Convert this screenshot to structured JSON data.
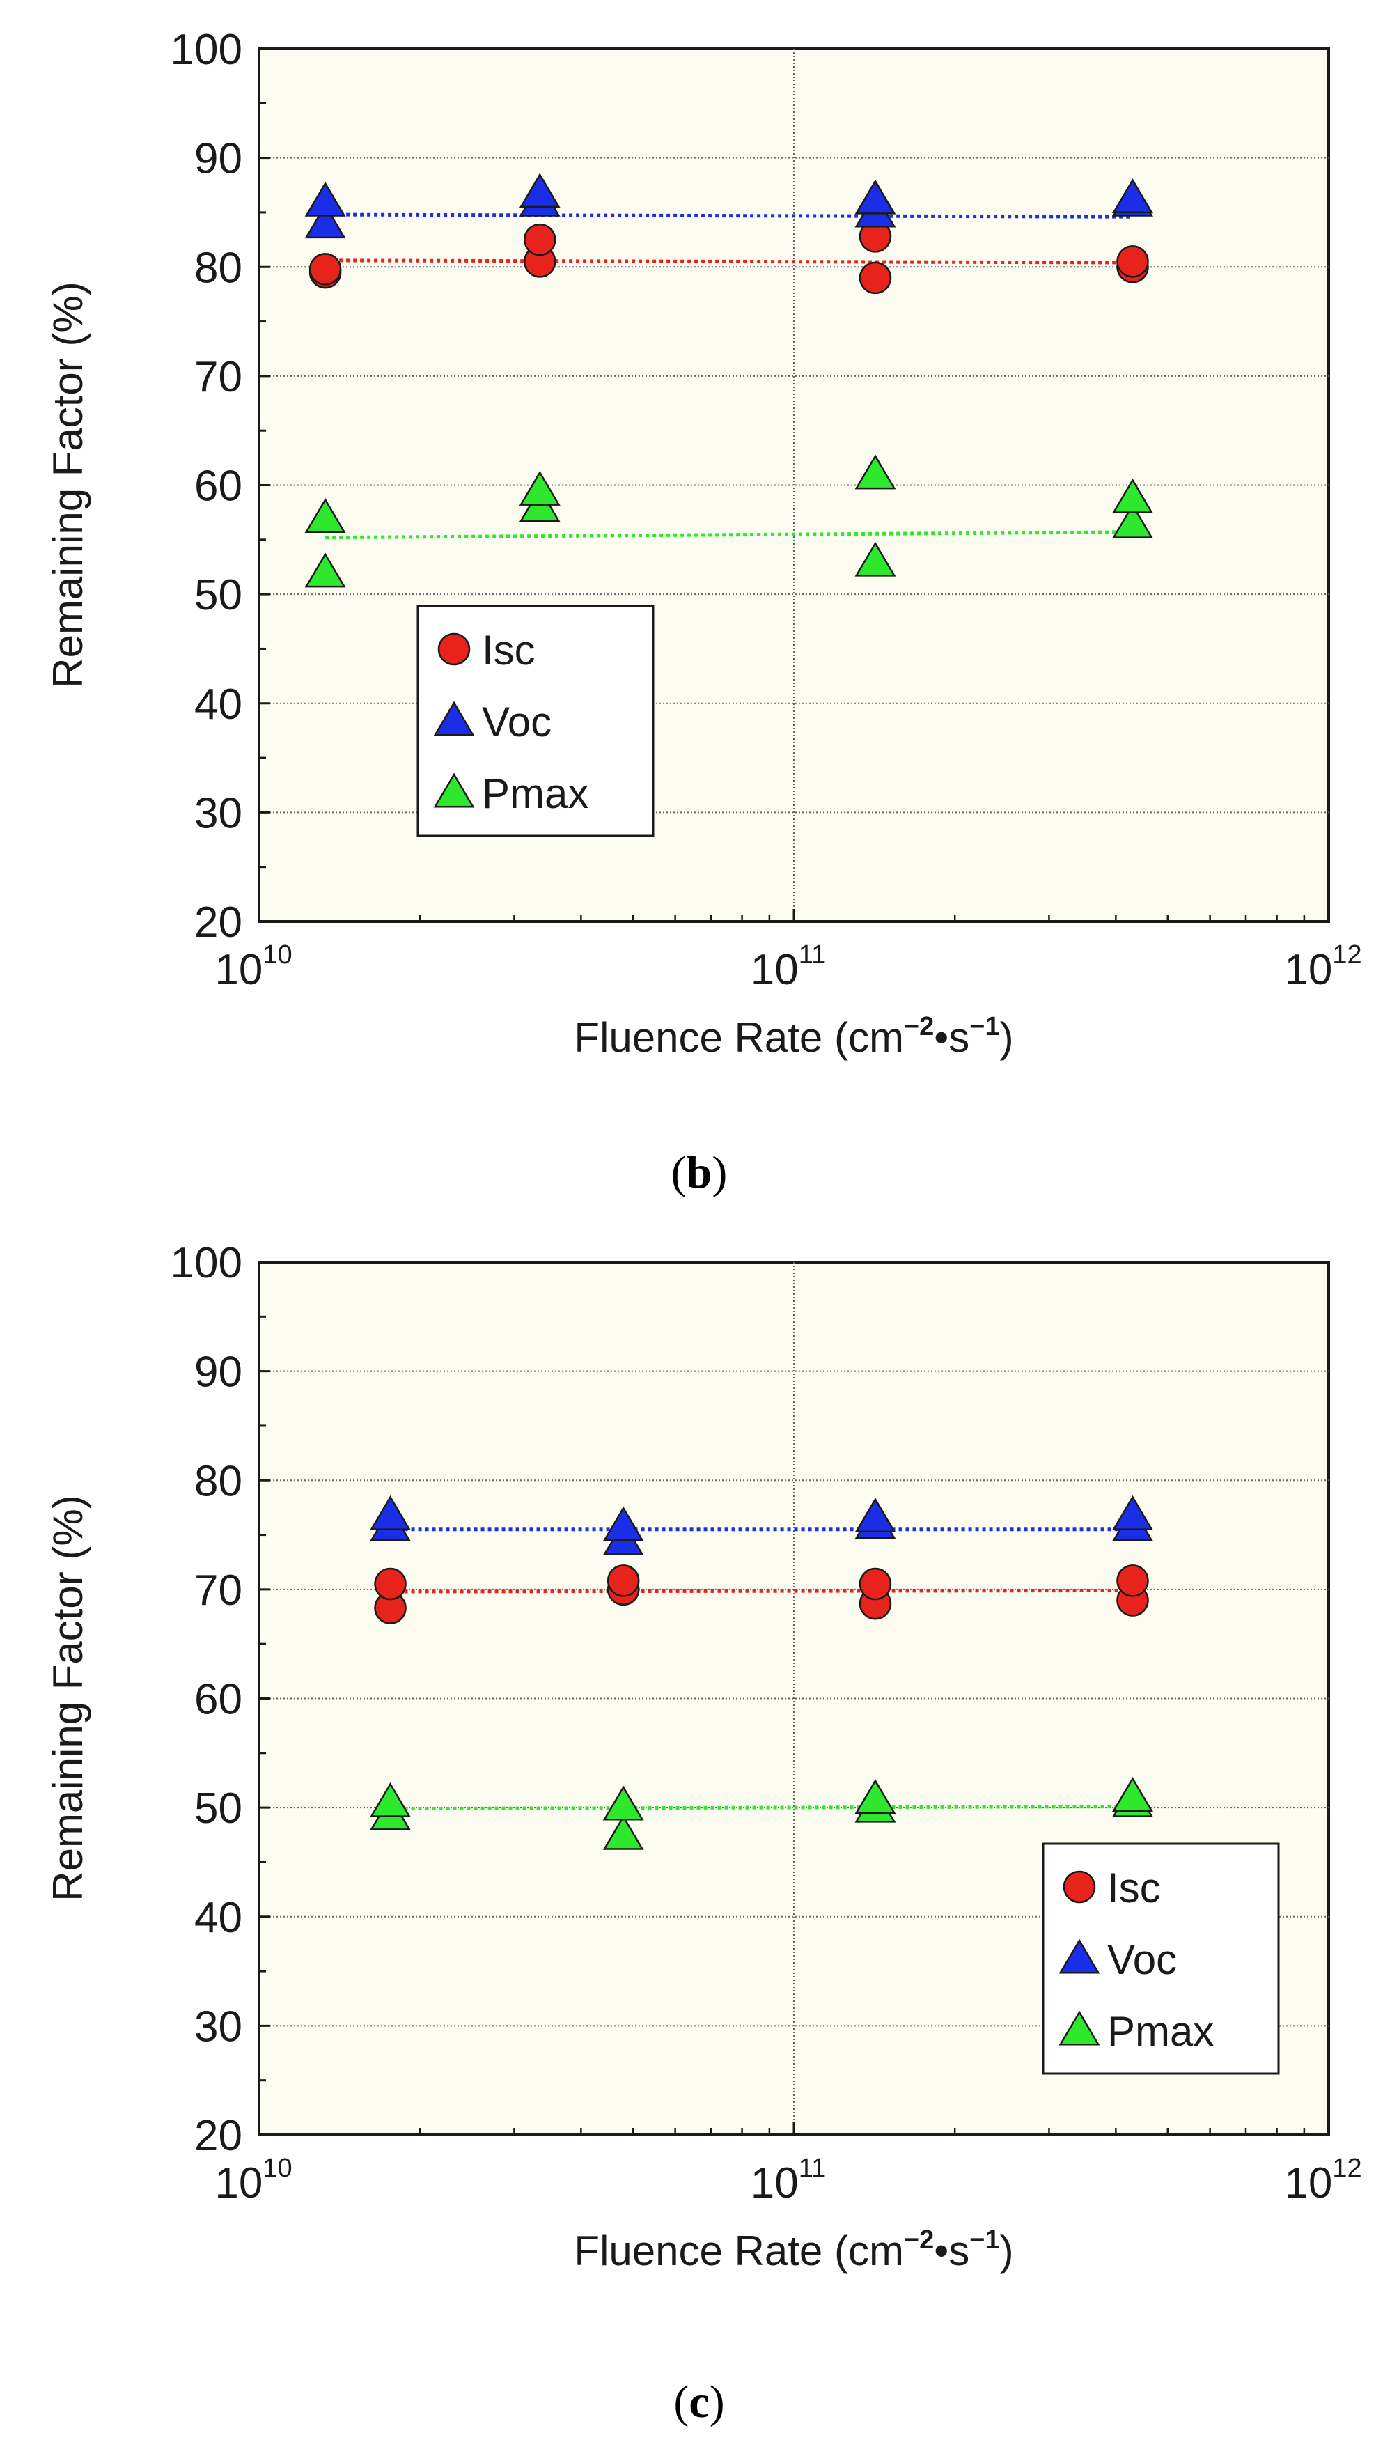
{
  "chart_data": [
    {
      "type": "scatter",
      "caption_letter": "b",
      "xlabel": "Fluence Rate (cm",
      "xlabel_exp1": "−2",
      "xlabel_mid": "•s",
      "xlabel_exp2": "−1",
      "xlabel_end": ")",
      "ylabel": "Remaining Factor (%)",
      "xscale": "log",
      "xlim": [
        10000000000,
        1000000000000
      ],
      "ylim": [
        20,
        100
      ],
      "yticks": [
        "20",
        "30",
        "40",
        "50",
        "60",
        "70",
        "80",
        "90",
        "100"
      ],
      "xticks": [
        {
          "base": "10",
          "exp": "10"
        },
        {
          "base": "10",
          "exp": "11"
        },
        {
          "base": "10",
          "exp": "12"
        }
      ],
      "legend_position": "center-left",
      "legend": [
        "Isc",
        "Voc",
        "Pmax"
      ],
      "series": [
        {
          "name": "Isc",
          "marker": "circle",
          "color": "#e8231c",
          "points": [
            [
              13300000000,
              79.5
            ],
            [
              13300000000,
              79.8
            ],
            [
              33500000000,
              80.5
            ],
            [
              33500000000,
              82.5
            ],
            [
              142000000000,
              79.0
            ],
            [
              142000000000,
              82.8
            ],
            [
              430000000000,
              80.0
            ],
            [
              430000000000,
              80.5
            ]
          ],
          "trend": [
            [
              13300000000,
              80.6
            ],
            [
              430000000000,
              80.4
            ]
          ]
        },
        {
          "name": "Voc",
          "marker": "triangle",
          "color": "#1a2ee8",
          "points": [
            [
              13300000000,
              84.0
            ],
            [
              13300000000,
              86.0
            ],
            [
              33500000000,
              86.0
            ],
            [
              33500000000,
              86.8
            ],
            [
              142000000000,
              85.0
            ],
            [
              142000000000,
              86.2
            ],
            [
              430000000000,
              86.0
            ],
            [
              430000000000,
              86.3
            ]
          ],
          "trend": [
            [
              13300000000,
              84.8
            ],
            [
              430000000000,
              84.6
            ]
          ]
        },
        {
          "name": "Pmax",
          "marker": "triangle",
          "color": "#2ee82e",
          "points": [
            [
              13300000000,
              52.0
            ],
            [
              13300000000,
              57.0
            ],
            [
              33500000000,
              58.0
            ],
            [
              33500000000,
              59.5
            ],
            [
              142000000000,
              53.0
            ],
            [
              142000000000,
              61.0
            ],
            [
              430000000000,
              56.5
            ],
            [
              430000000000,
              58.8
            ]
          ],
          "trend": [
            [
              13300000000,
              55.2
            ],
            [
              430000000000,
              55.7
            ]
          ]
        }
      ]
    },
    {
      "type": "scatter",
      "caption_letter": "c",
      "xlabel": "Fluence Rate (cm",
      "xlabel_exp1": "−2",
      "xlabel_mid": "•s",
      "xlabel_exp2": "−1",
      "xlabel_end": ")",
      "ylabel": "Remaining Factor (%)",
      "xscale": "log",
      "xlim": [
        10000000000,
        1000000000000
      ],
      "ylim": [
        20,
        100
      ],
      "yticks": [
        "20",
        "30",
        "40",
        "50",
        "60",
        "70",
        "80",
        "90",
        "100"
      ],
      "xticks": [
        {
          "base": "10",
          "exp": "10"
        },
        {
          "base": "10",
          "exp": "11"
        },
        {
          "base": "10",
          "exp": "12"
        }
      ],
      "legend_position": "bottom-right",
      "legend": [
        "Isc",
        "Voc",
        "Pmax"
      ],
      "series": [
        {
          "name": "Isc",
          "marker": "circle",
          "color": "#e8231c",
          "points": [
            [
              17600000000,
              68.3
            ],
            [
              17600000000,
              70.5
            ],
            [
              48000000000,
              70.0
            ],
            [
              48000000000,
              70.8
            ],
            [
              142000000000,
              68.7
            ],
            [
              142000000000,
              70.5
            ],
            [
              430000000000,
              69.0
            ],
            [
              430000000000,
              70.8
            ]
          ],
          "trend": [
            [
              17600000000,
              69.8
            ],
            [
              430000000000,
              69.9
            ]
          ]
        },
        {
          "name": "Voc",
          "marker": "triangle",
          "color": "#1a2ee8",
          "points": [
            [
              17600000000,
              75.8
            ],
            [
              17600000000,
              76.8
            ],
            [
              48000000000,
              74.5
            ],
            [
              48000000000,
              75.8
            ],
            [
              142000000000,
              76.0
            ],
            [
              142000000000,
              76.6
            ],
            [
              430000000000,
              75.8
            ],
            [
              430000000000,
              76.8
            ]
          ],
          "trend": [
            [
              17600000000,
              75.5
            ],
            [
              430000000000,
              75.5
            ]
          ]
        },
        {
          "name": "Pmax",
          "marker": "triangle",
          "color": "#2ee82e",
          "points": [
            [
              17600000000,
              49.3
            ],
            [
              17600000000,
              50.5
            ],
            [
              48000000000,
              47.5
            ],
            [
              48000000000,
              50.2
            ],
            [
              142000000000,
              50.0
            ],
            [
              142000000000,
              50.8
            ],
            [
              430000000000,
              50.5
            ],
            [
              430000000000,
              51.0
            ]
          ],
          "trend": [
            [
              17600000000,
              49.9
            ],
            [
              430000000000,
              50.1
            ]
          ]
        }
      ]
    }
  ]
}
